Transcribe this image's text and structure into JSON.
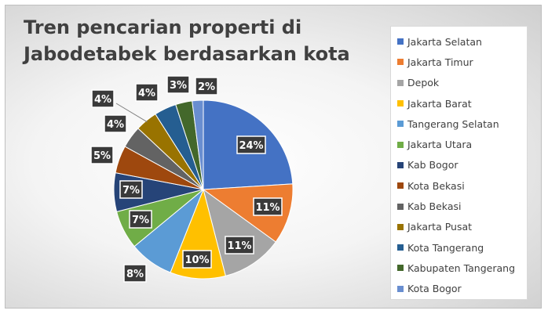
{
  "chart_data": {
    "type": "pie",
    "title": "Tren pencarian properti di Jabodetabek berdasarkan kota",
    "legend_position": "right",
    "slices": [
      {
        "name": "Jakarta Selatan",
        "value": 24,
        "label": "24%",
        "color": "#4472C4"
      },
      {
        "name": "Jakarta Timur",
        "value": 11,
        "label": "11%",
        "color": "#ED7D31"
      },
      {
        "name": "Depok",
        "value": 11,
        "label": "11%",
        "color": "#A5A5A5"
      },
      {
        "name": "Jakarta Barat",
        "value": 10,
        "label": "10%",
        "color": "#FFC000"
      },
      {
        "name": "Tangerang Selatan",
        "value": 8,
        "label": "8%",
        "color": "#5B9BD5"
      },
      {
        "name": "Jakarta Utara",
        "value": 7,
        "label": "7%",
        "color": "#70AD47"
      },
      {
        "name": "Kab Bogor",
        "value": 7,
        "label": "7%",
        "color": "#264478"
      },
      {
        "name": "Kota Bekasi",
        "value": 5,
        "label": "5%",
        "color": "#9E480E"
      },
      {
        "name": "Kab Bekasi",
        "value": 4,
        "label": "4%",
        "color": "#636363"
      },
      {
        "name": "Jakarta Pusat",
        "value": 4,
        "label": "4%",
        "color": "#997300"
      },
      {
        "name": "Kota Tangerang",
        "value": 4,
        "label": "4%",
        "color": "#255E91"
      },
      {
        "name": "Kabupaten Tangerang",
        "value": 3,
        "label": "3%",
        "color": "#43682B"
      },
      {
        "name": "Kota Bogor",
        "value": 2,
        "label": "2%",
        "color": "#698ED0"
      }
    ]
  }
}
